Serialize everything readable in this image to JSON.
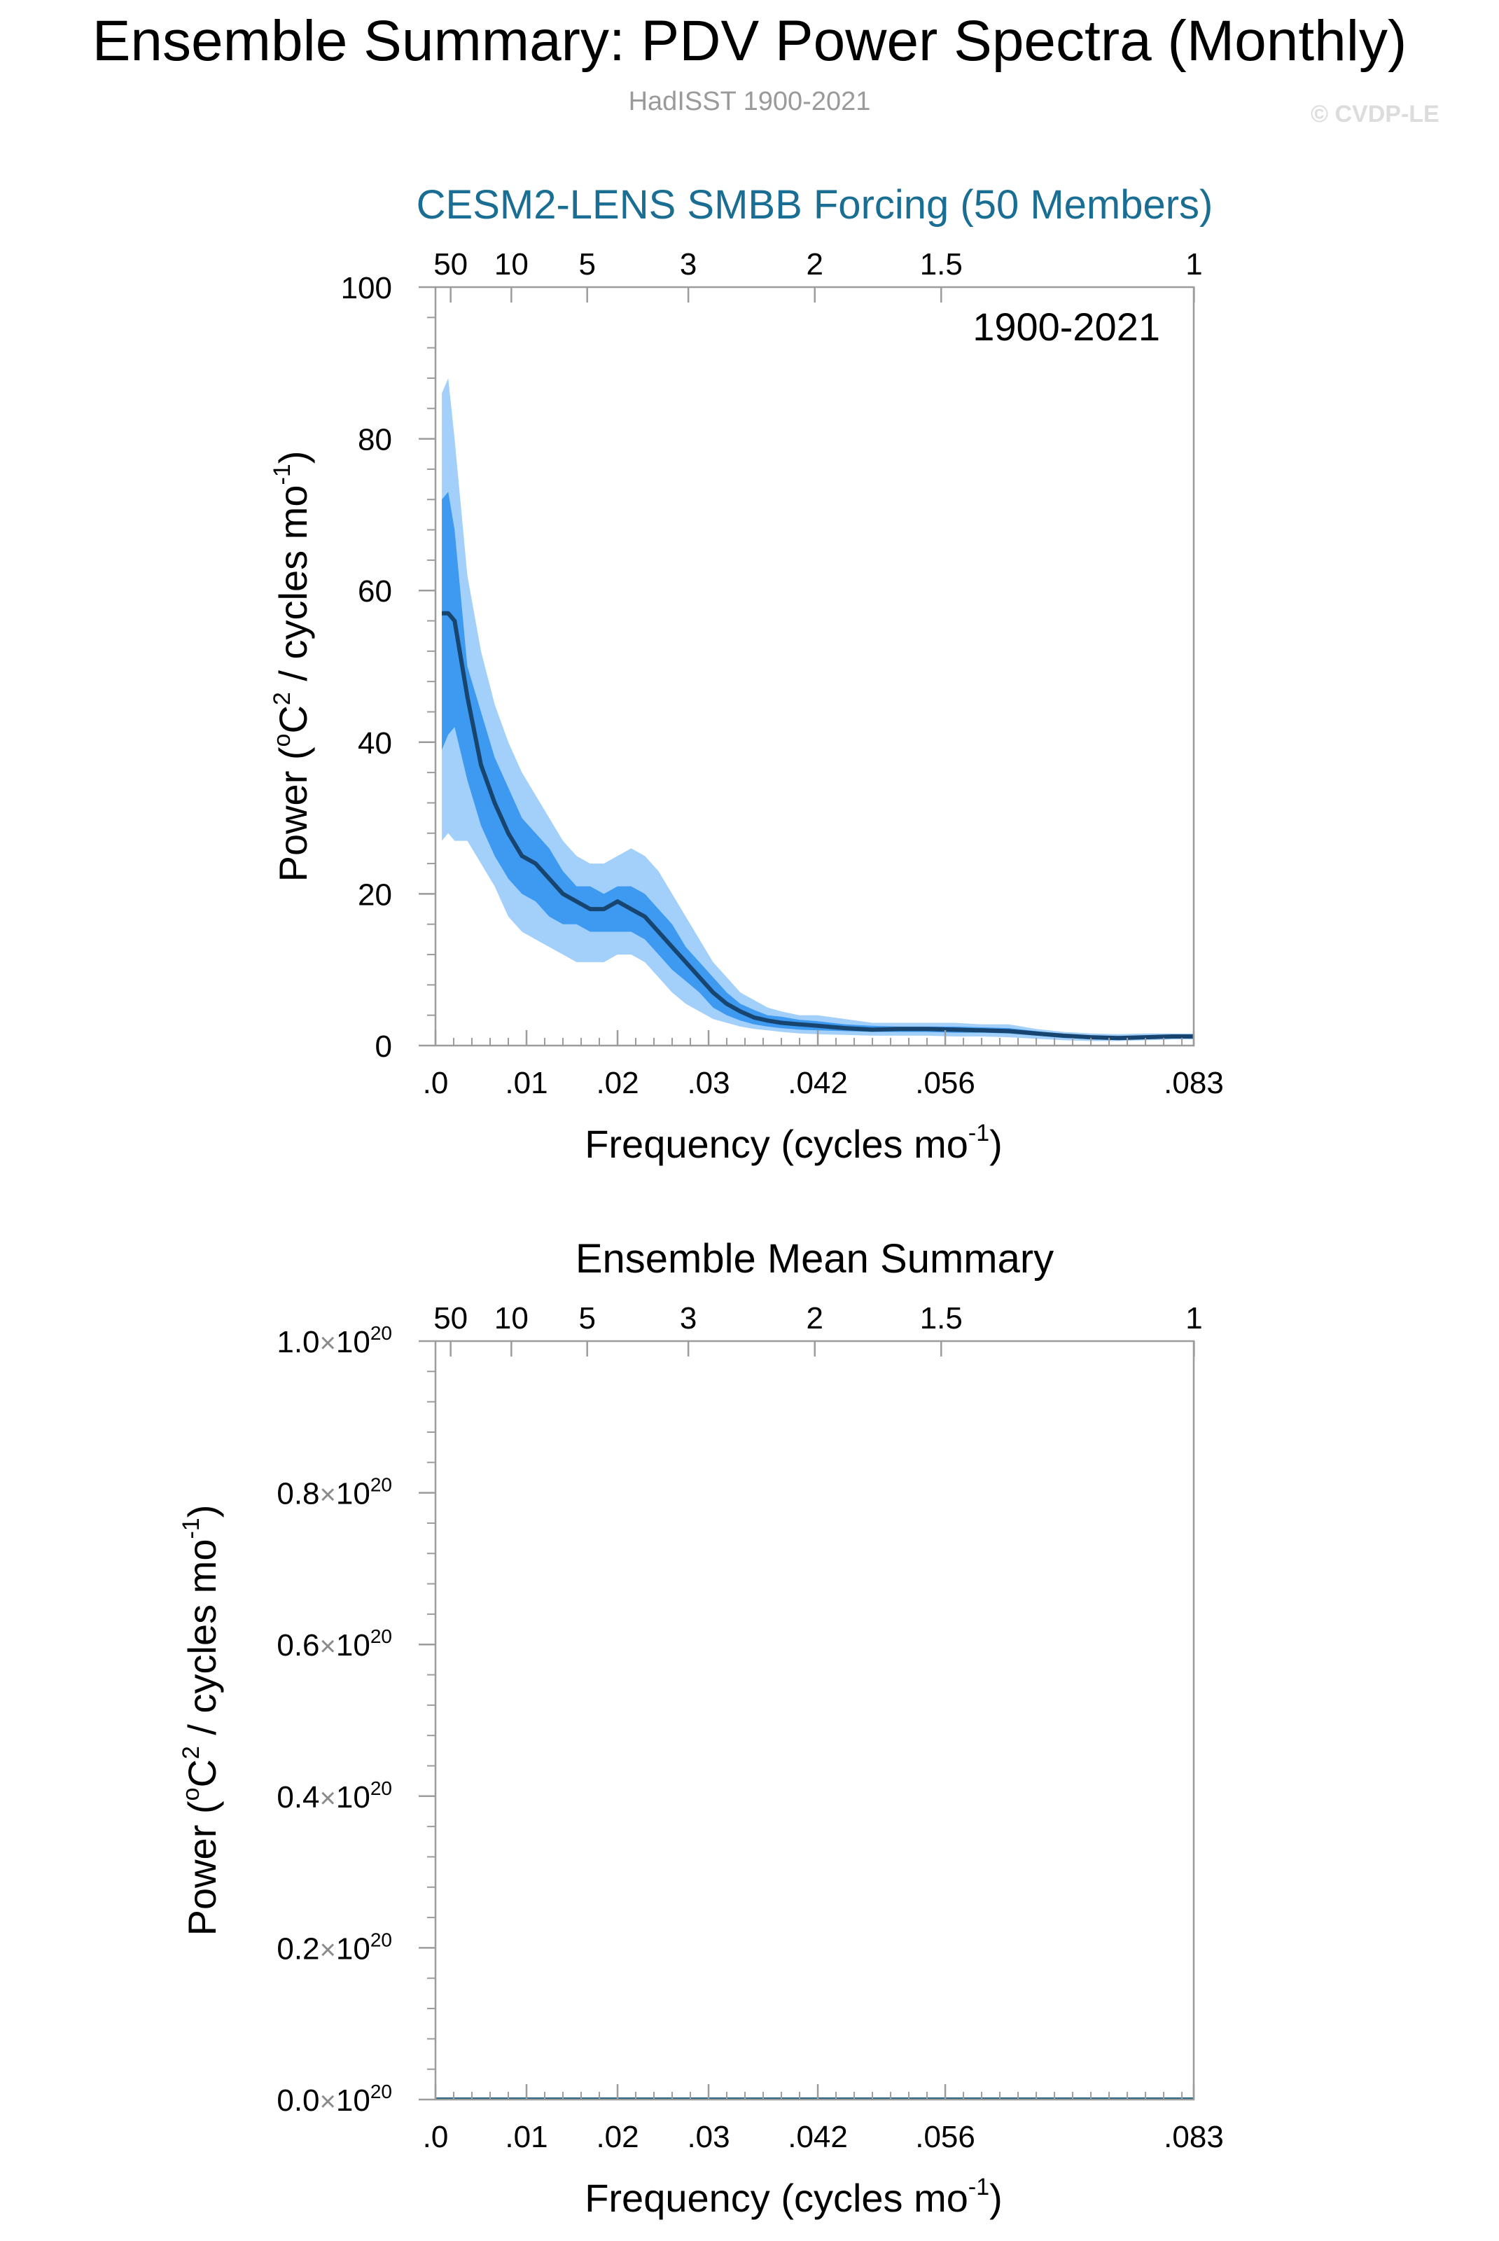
{
  "page": {
    "title": "Ensemble Summary: PDV Power Spectra (Monthly)",
    "subtitle": "HadISST 1900-2021",
    "copyright": "© CVDP-LE"
  },
  "colors": {
    "outer_band": "#a3d0fb",
    "inner_band": "#3d9af0",
    "mean_line": "#17456f",
    "panel1_title": "#1a6e93",
    "panel2_line": "#1a5f80",
    "axis": "#9c9c9c"
  },
  "chart_data": [
    {
      "type": "area",
      "title": "CESM2-LENS SMBB Forcing (50 Members)",
      "annotation": "1900-2021",
      "xlabel_main": "Frequency (cycles mo",
      "xlabel_sup": "-1",
      "xlabel_end": ")",
      "ylabel_main": "Power (",
      "ylabel_sup1": "o",
      "ylabel_mid": "C",
      "ylabel_sup2": "2",
      "ylabel_rest": " / cycles mo",
      "ylabel_sup3": "-1",
      "ylabel_end": ")",
      "xlim": [
        0,
        0.0833
      ],
      "ylim": [
        0,
        100
      ],
      "x_ticks": [
        {
          "value": 0,
          "label": ".0"
        },
        {
          "value": 0.01,
          "label": ".01"
        },
        {
          "value": 0.02,
          "label": ".02"
        },
        {
          "value": 0.03,
          "label": ".03"
        },
        {
          "value": 0.042,
          "label": ".042"
        },
        {
          "value": 0.056,
          "label": ".056"
        },
        {
          "value": 0.0833,
          "label": ".083"
        }
      ],
      "top_ticks": [
        {
          "period": 50,
          "label": "50"
        },
        {
          "period": 10,
          "label": "10"
        },
        {
          "period": 5,
          "label": "5"
        },
        {
          "period": 3,
          "label": "3"
        },
        {
          "period": 2,
          "label": "2"
        },
        {
          "period": 1.5,
          "label": "1.5"
        },
        {
          "period": 1,
          "label": "1"
        }
      ],
      "y_ticks": [
        {
          "value": 0,
          "label": "0"
        },
        {
          "value": 20,
          "label": "20"
        },
        {
          "value": 40,
          "label": "40"
        },
        {
          "value": 60,
          "label": "60"
        },
        {
          "value": 80,
          "label": "80"
        },
        {
          "value": 100,
          "label": "100"
        }
      ],
      "x": [
        0.0007,
        0.0014,
        0.0021,
        0.0035,
        0.005,
        0.0065,
        0.008,
        0.0095,
        0.011,
        0.0125,
        0.014,
        0.0155,
        0.017,
        0.0185,
        0.02,
        0.0215,
        0.023,
        0.0245,
        0.026,
        0.0275,
        0.029,
        0.0305,
        0.032,
        0.0335,
        0.035,
        0.0365,
        0.038,
        0.04,
        0.042,
        0.045,
        0.048,
        0.051,
        0.054,
        0.057,
        0.06,
        0.063,
        0.066,
        0.069,
        0.072,
        0.075,
        0.078,
        0.081,
        0.0833
      ],
      "series": [
        {
          "role": "max",
          "values": [
            86,
            88,
            80,
            62,
            52,
            45,
            40,
            36,
            33,
            30,
            27,
            25,
            24,
            24,
            25,
            26,
            25,
            23,
            20,
            17,
            14,
            11,
            9,
            7,
            6,
            5,
            4.5,
            4,
            4,
            3.5,
            3,
            3,
            3,
            3,
            2.8,
            2.8,
            2.2,
            1.8,
            1.6,
            1.5,
            1.6,
            1.6,
            1.6
          ]
        },
        {
          "role": "p75",
          "values": [
            72,
            73,
            68,
            50,
            44,
            38,
            34,
            30,
            28,
            26,
            23,
            21,
            21,
            20,
            21,
            21,
            20,
            18,
            16,
            13,
            11,
            9,
            7,
            5.5,
            4.7,
            4,
            3.8,
            3.4,
            3.2,
            2.8,
            2.6,
            2.5,
            2.5,
            2.5,
            2.4,
            2.3,
            1.9,
            1.5,
            1.3,
            1.2,
            1.3,
            1.4,
            1.4
          ]
        },
        {
          "role": "mean",
          "values": [
            57,
            57,
            56,
            46,
            37,
            32,
            28,
            25,
            24,
            22,
            20,
            19,
            18,
            18,
            19,
            18,
            17,
            15,
            13,
            11,
            9,
            7,
            5.5,
            4.5,
            3.7,
            3.3,
            3,
            2.8,
            2.6,
            2.3,
            2.1,
            2.2,
            2.2,
            2.1,
            2,
            1.9,
            1.6,
            1.3,
            1.1,
            1,
            1.1,
            1.2,
            1.2
          ]
        },
        {
          "role": "p25",
          "values": [
            39,
            41,
            42,
            35,
            29,
            25,
            22,
            20,
            19,
            17,
            16,
            16,
            15,
            15,
            15,
            15,
            14,
            12,
            10,
            8.5,
            7,
            5,
            4,
            3.3,
            2.8,
            2.5,
            2.3,
            2.1,
            2,
            1.9,
            1.8,
            1.8,
            1.8,
            1.7,
            1.7,
            1.6,
            1.3,
            1,
            0.9,
            0.8,
            0.9,
            1,
            1
          ]
        },
        {
          "role": "min",
          "values": [
            27,
            28,
            27,
            27,
            24,
            21,
            17,
            15,
            14,
            13,
            12,
            11,
            11,
            11,
            12,
            12,
            11,
            9,
            7,
            5.5,
            4.5,
            3.5,
            3,
            2.5,
            2.2,
            2,
            1.8,
            1.6,
            1.5,
            1.4,
            1.3,
            1.3,
            1.3,
            1.2,
            1.2,
            1.1,
            0.9,
            0.7,
            0.6,
            0.6,
            0.7,
            0.8,
            0.8
          ]
        }
      ]
    },
    {
      "type": "line",
      "title": "Ensemble Mean Summary",
      "xlabel_main": "Frequency (cycles mo",
      "xlabel_sup": "-1",
      "xlabel_end": ")",
      "ylabel_main": "Power (",
      "ylabel_sup1": "o",
      "ylabel_mid": "C",
      "ylabel_sup2": "2",
      "ylabel_rest": " / cycles mo",
      "ylabel_sup3": "-1",
      "ylabel_end": ")",
      "xlim": [
        0,
        0.0833
      ],
      "ylim": [
        0,
        1e+20
      ],
      "x_ticks": [
        {
          "value": 0,
          "label": ".0"
        },
        {
          "value": 0.01,
          "label": ".01"
        },
        {
          "value": 0.02,
          "label": ".02"
        },
        {
          "value": 0.03,
          "label": ".03"
        },
        {
          "value": 0.042,
          "label": ".042"
        },
        {
          "value": 0.056,
          "label": ".056"
        },
        {
          "value": 0.0833,
          "label": ".083"
        }
      ],
      "top_ticks": [
        {
          "period": 50,
          "label": "50"
        },
        {
          "period": 10,
          "label": "10"
        },
        {
          "period": 5,
          "label": "5"
        },
        {
          "period": 3,
          "label": "3"
        },
        {
          "period": 2,
          "label": "2"
        },
        {
          "period": 1.5,
          "label": "1.5"
        },
        {
          "period": 1,
          "label": "1"
        }
      ],
      "y_ticks": [
        {
          "value": 0,
          "mantissa": "0.0",
          "times": "×",
          "base": "10",
          "exp": "20"
        },
        {
          "value": 2e+19,
          "mantissa": "0.2",
          "times": "×",
          "base": "10",
          "exp": "20"
        },
        {
          "value": 4e+19,
          "mantissa": "0.4",
          "times": "×",
          "base": "10",
          "exp": "20"
        },
        {
          "value": 6e+19,
          "mantissa": "0.6",
          "times": "×",
          "base": "10",
          "exp": "20"
        },
        {
          "value": 8e+19,
          "mantissa": "0.8",
          "times": "×",
          "base": "10",
          "exp": "20"
        },
        {
          "value": 1e+20,
          "mantissa": "1.0",
          "times": "×",
          "base": "10",
          "exp": "20"
        }
      ],
      "x": [
        0,
        0.0833
      ],
      "series": [
        {
          "role": "ensemble-mean",
          "values": [
            0,
            0
          ]
        }
      ]
    }
  ]
}
